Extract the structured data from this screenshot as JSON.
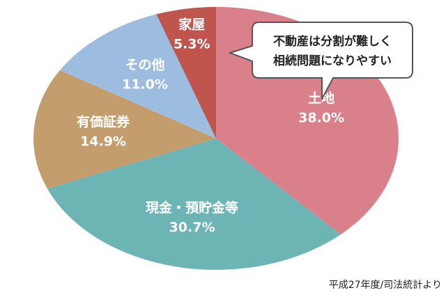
{
  "chart_data": {
    "type": "pie",
    "categories": [
      "土地",
      "現金・預貯金等",
      "有価証券",
      "その他",
      "家屋"
    ],
    "values": [
      38.0,
      30.7,
      14.9,
      11.0,
      5.3
    ],
    "value_labels": [
      "38.0%",
      "30.7%",
      "14.9%",
      "11.0%",
      "5.3%"
    ],
    "colors": [
      "#d9808a",
      "#6db5b5",
      "#c39e6c",
      "#9dbde0",
      "#c0554e"
    ],
    "annotation": [
      "不動産は分割が難しく",
      "相続問題になりやすい"
    ],
    "source": "平成27年度/司法統計より"
  }
}
